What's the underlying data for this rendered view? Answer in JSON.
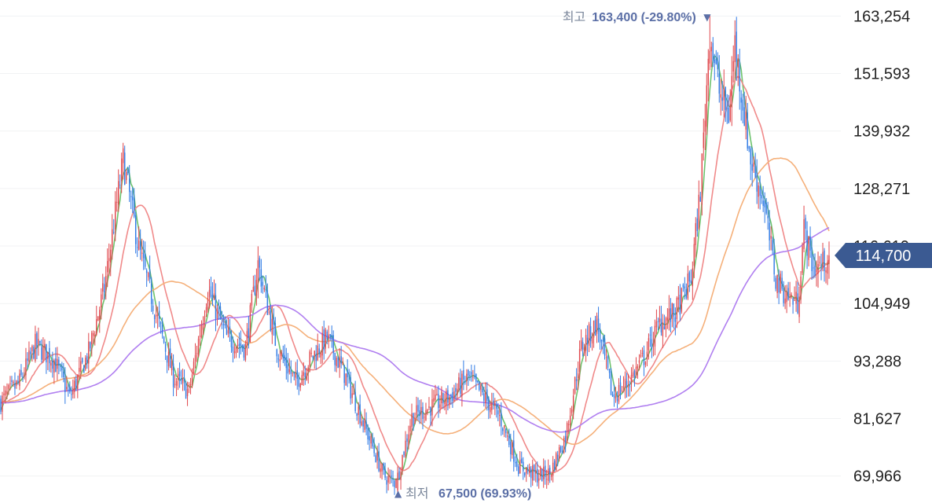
{
  "chart_data": {
    "type": "candlestick",
    "title": "",
    "xlabel": "",
    "ylabel": "",
    "ylim": [
      64500,
      166500
    ],
    "y_ticks": [
      "163,254",
      "151,593",
      "139,932",
      "128,271",
      "116,610",
      "104,949",
      "93,288",
      "81,627",
      "69,966"
    ],
    "y_tick_values": [
      163254,
      151593,
      139932,
      128271,
      116610,
      104949,
      93288,
      81627,
      69966
    ],
    "grid": true,
    "up_color": "#e0474c",
    "down_color": "#2f7ae5",
    "moving_averages": [
      {
        "window": 5,
        "color": "#6cc26c"
      },
      {
        "window": 20,
        "color": "#f08a8a"
      },
      {
        "window": 60,
        "color": "#f5b07a"
      },
      {
        "window": 120,
        "color": "#b07ff0"
      }
    ],
    "anchors": [
      [
        0,
        85000
      ],
      [
        12,
        89000
      ],
      [
        22,
        96500
      ],
      [
        34,
        93500
      ],
      [
        44,
        86000
      ],
      [
        56,
        95000
      ],
      [
        66,
        108000
      ],
      [
        78,
        134000
      ],
      [
        88,
        116000
      ],
      [
        98,
        104000
      ],
      [
        110,
        90000
      ],
      [
        120,
        87000
      ],
      [
        132,
        108000
      ],
      [
        144,
        98000
      ],
      [
        156,
        96000
      ],
      [
        164,
        113000
      ],
      [
        176,
        96000
      ],
      [
        188,
        89000
      ],
      [
        198,
        94000
      ],
      [
        208,
        98000
      ],
      [
        220,
        90000
      ],
      [
        232,
        80000
      ],
      [
        244,
        70000
      ],
      [
        252,
        68500
      ],
      [
        262,
        82000
      ],
      [
        274,
        84000
      ],
      [
        286,
        86000
      ],
      [
        298,
        90000
      ],
      [
        308,
        86000
      ],
      [
        318,
        82000
      ],
      [
        330,
        72000
      ],
      [
        342,
        70000
      ],
      [
        350,
        70500
      ],
      [
        360,
        78000
      ],
      [
        370,
        96000
      ],
      [
        380,
        101000
      ],
      [
        390,
        86000
      ],
      [
        400,
        89000
      ],
      [
        410,
        94000
      ],
      [
        420,
        101000
      ],
      [
        430,
        103000
      ],
      [
        440,
        110000
      ],
      [
        446,
        128000
      ],
      [
        452,
        160000
      ],
      [
        458,
        148000
      ],
      [
        464,
        143000
      ],
      [
        468,
        158000
      ],
      [
        472,
        148000
      ],
      [
        478,
        134000
      ],
      [
        486,
        126000
      ],
      [
        494,
        110000
      ],
      [
        500,
        107000
      ],
      [
        508,
        105000
      ],
      [
        512,
        120000
      ],
      [
        518,
        112000
      ],
      [
        524,
        113000
      ],
      [
        528,
        114700
      ]
    ],
    "high_annotation": {
      "label": "최고",
      "value": "163,400 (-29.80%)",
      "arrow": "▼",
      "price": 163400,
      "index": 452
    },
    "low_annotation": {
      "label": "최저",
      "value": "67,500 (69.93%)",
      "arrow": "▲",
      "price": 67500,
      "index": 252
    },
    "current_price": {
      "value": 114700,
      "label": "114,700",
      "color": "#3b5a92"
    }
  }
}
